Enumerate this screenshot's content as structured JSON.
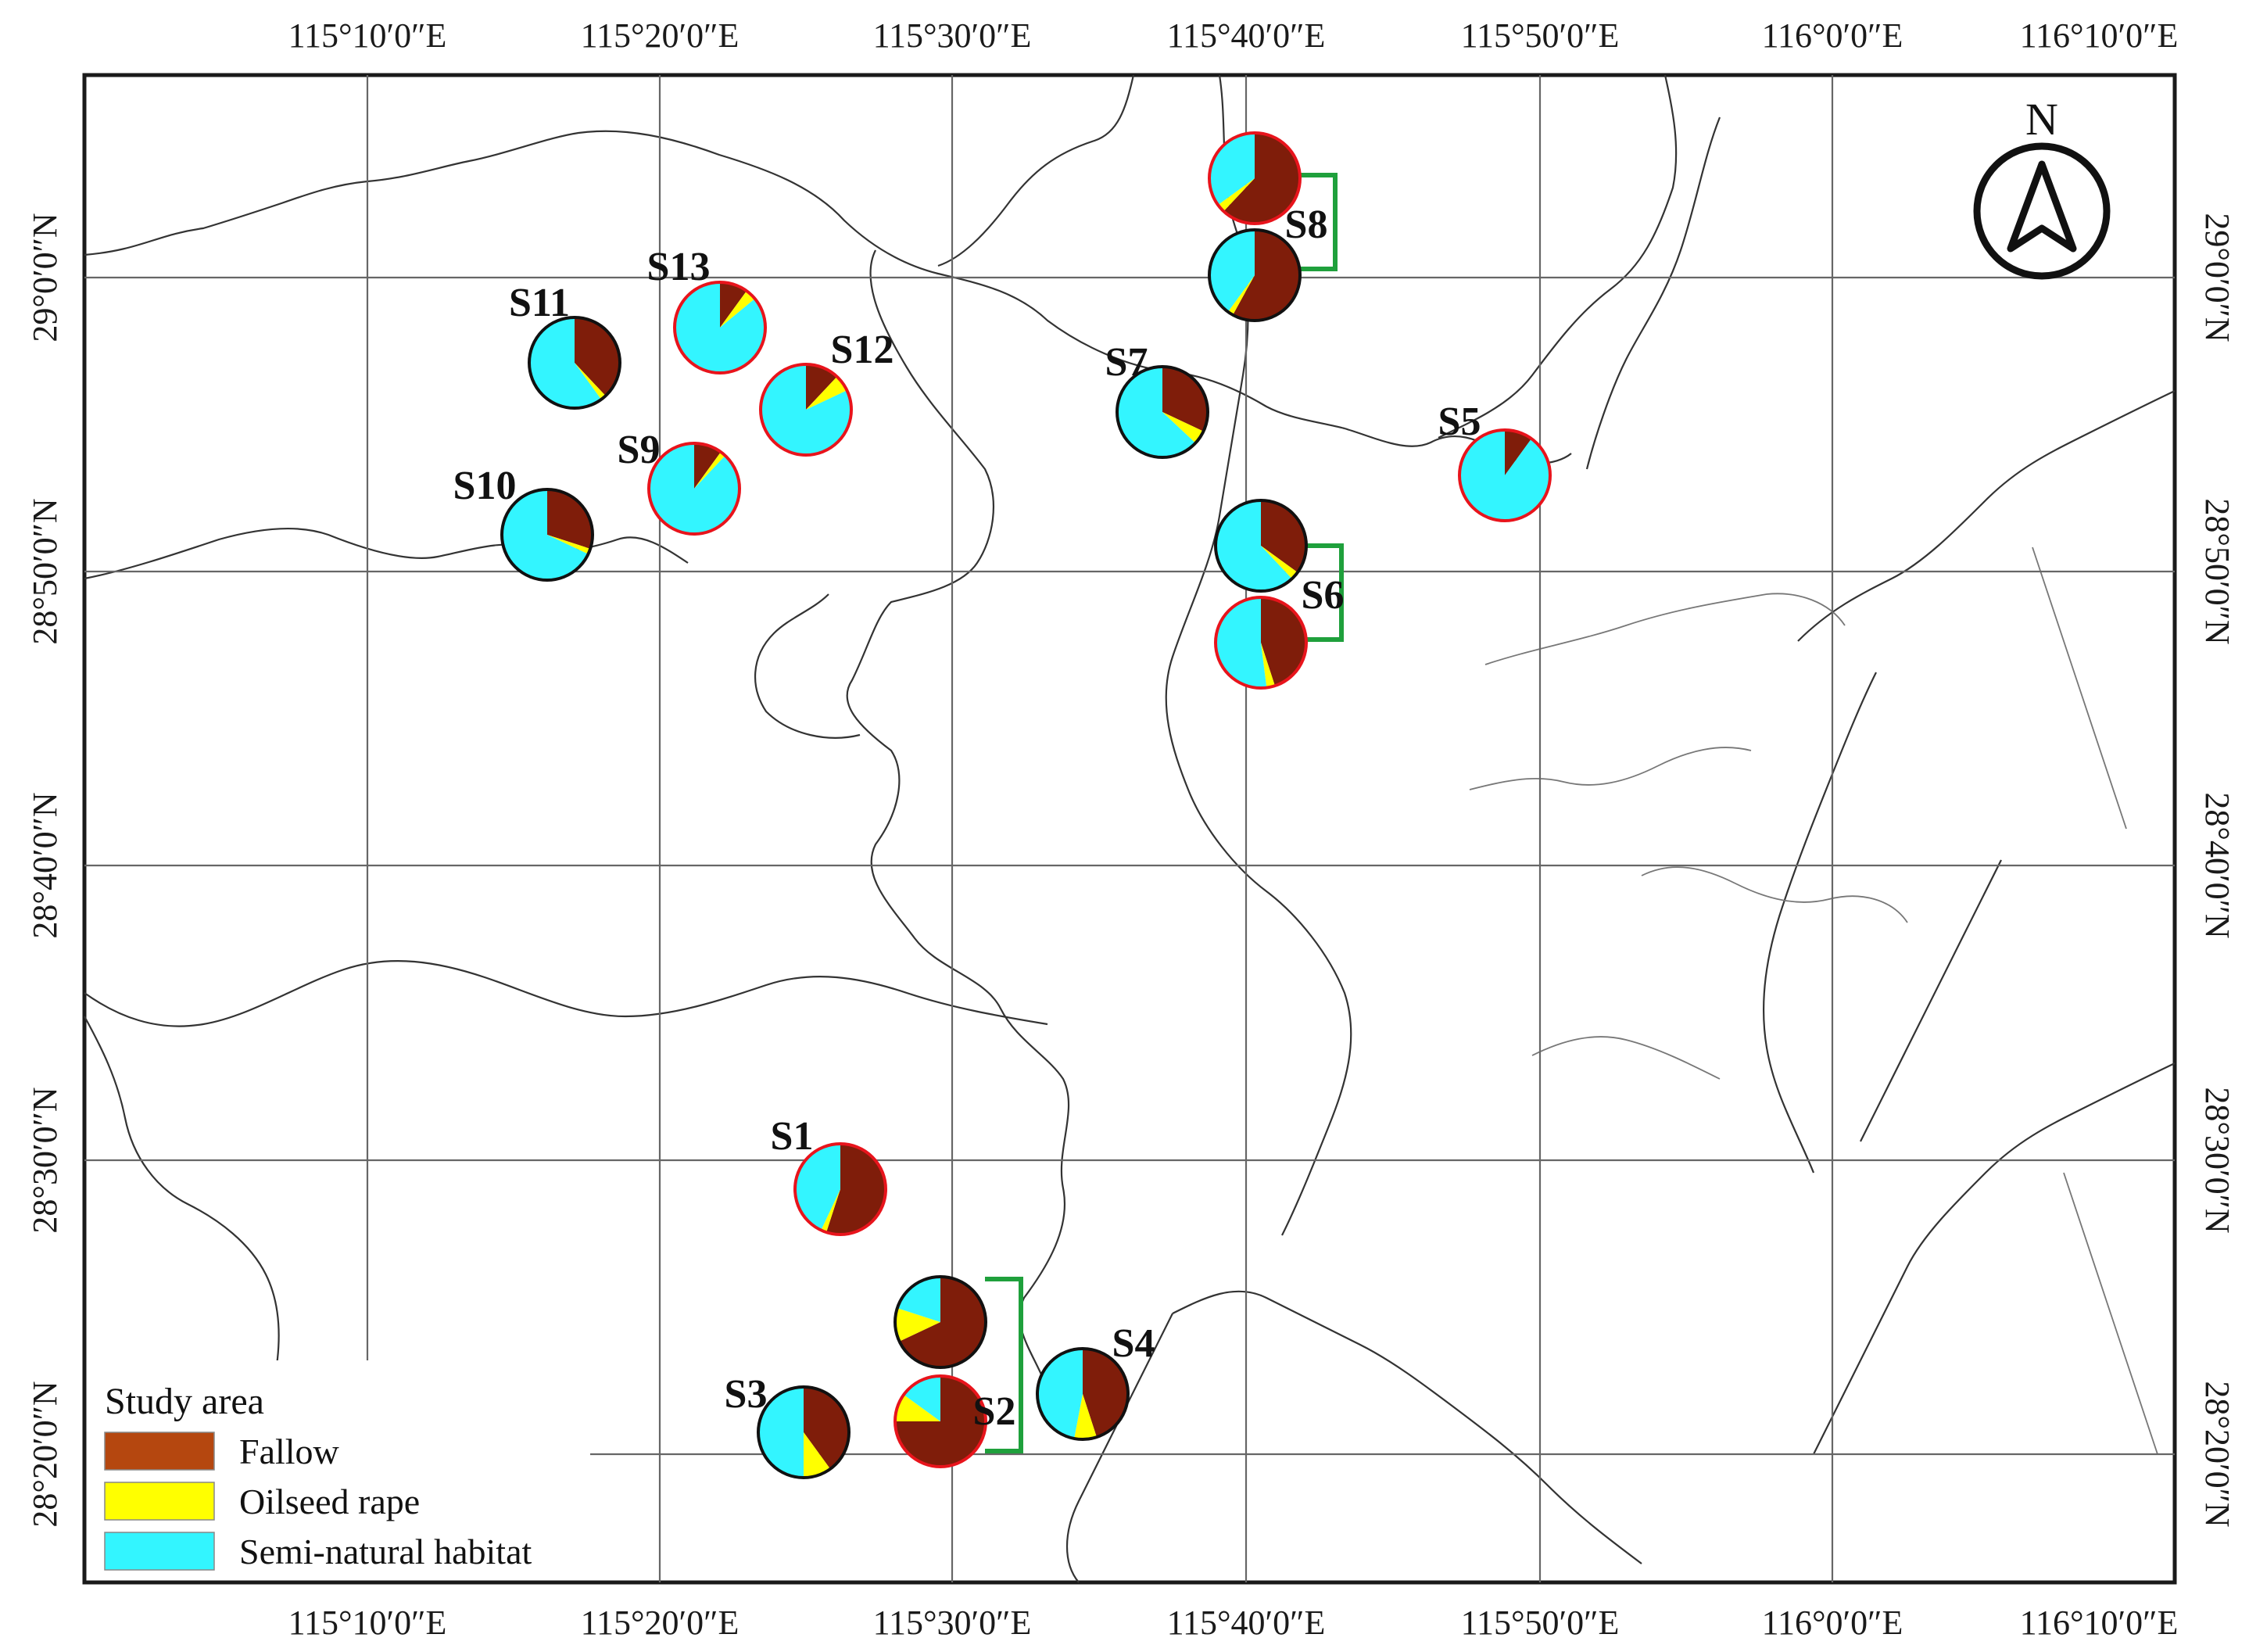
{
  "map": {
    "lon_labels": [
      "115°10′0″E",
      "115°20′0″E",
      "115°30′0″E",
      "115°40′0″E",
      "115°50′0″E",
      "116°0′0″E",
      "116°10′0″E"
    ],
    "lat_labels": [
      "29°0′0″N",
      "28°50′0″N",
      "28°40′0″N",
      "28°30′0″N",
      "28°20′0″N"
    ],
    "north_label": "N",
    "legend": {
      "title": "Study area",
      "items": [
        {
          "label": "Fallow",
          "color": "#b5470f"
        },
        {
          "label": "Oilseed rape",
          "color": "#ffff00"
        },
        {
          "label": "Semi-natural habitat",
          "color": "#33f5ff"
        }
      ]
    },
    "pie_colors": {
      "fallow": "#7f1d0a",
      "oilseed": "#ffff00",
      "semi": "#33f5ff"
    },
    "sites": [
      {
        "label": "S1",
        "fallow": 0.55,
        "oilseed": 0.02,
        "semi": 0.43,
        "ring": "red"
      },
      {
        "label": "S2",
        "fallow": 0.68,
        "oilseed": 0.12,
        "semi": 0.2,
        "ring": "black"
      },
      {
        "label": "S2",
        "fallow": 0.75,
        "oilseed": 0.1,
        "semi": 0.15,
        "ring": "red"
      },
      {
        "label": "S3",
        "fallow": 0.4,
        "oilseed": 0.1,
        "semi": 0.5,
        "ring": "black"
      },
      {
        "label": "S4",
        "fallow": 0.45,
        "oilseed": 0.08,
        "semi": 0.47,
        "ring": "black"
      },
      {
        "label": "S5",
        "fallow": 0.1,
        "oilseed": 0.0,
        "semi": 0.9,
        "ring": "red"
      },
      {
        "label": "S6",
        "fallow": 0.35,
        "oilseed": 0.03,
        "semi": 0.62,
        "ring": "black"
      },
      {
        "label": "S6",
        "fallow": 0.45,
        "oilseed": 0.03,
        "semi": 0.52,
        "ring": "red"
      },
      {
        "label": "S7",
        "fallow": 0.32,
        "oilseed": 0.05,
        "semi": 0.63,
        "ring": "black"
      },
      {
        "label": "S8",
        "fallow": 0.62,
        "oilseed": 0.03,
        "semi": 0.35,
        "ring": "red"
      },
      {
        "label": "S8",
        "fallow": 0.58,
        "oilseed": 0.02,
        "semi": 0.4,
        "ring": "black"
      },
      {
        "label": "S9",
        "fallow": 0.1,
        "oilseed": 0.02,
        "semi": 0.88,
        "ring": "red"
      },
      {
        "label": "S10",
        "fallow": 0.3,
        "oilseed": 0.02,
        "semi": 0.68,
        "ring": "black"
      },
      {
        "label": "S11",
        "fallow": 0.38,
        "oilseed": 0.02,
        "semi": 0.6,
        "ring": "black"
      },
      {
        "label": "S12",
        "fallow": 0.12,
        "oilseed": 0.06,
        "semi": 0.82,
        "ring": "red"
      },
      {
        "label": "S13",
        "fallow": 0.1,
        "oilseed": 0.04,
        "semi": 0.86,
        "ring": "red"
      }
    ]
  }
}
